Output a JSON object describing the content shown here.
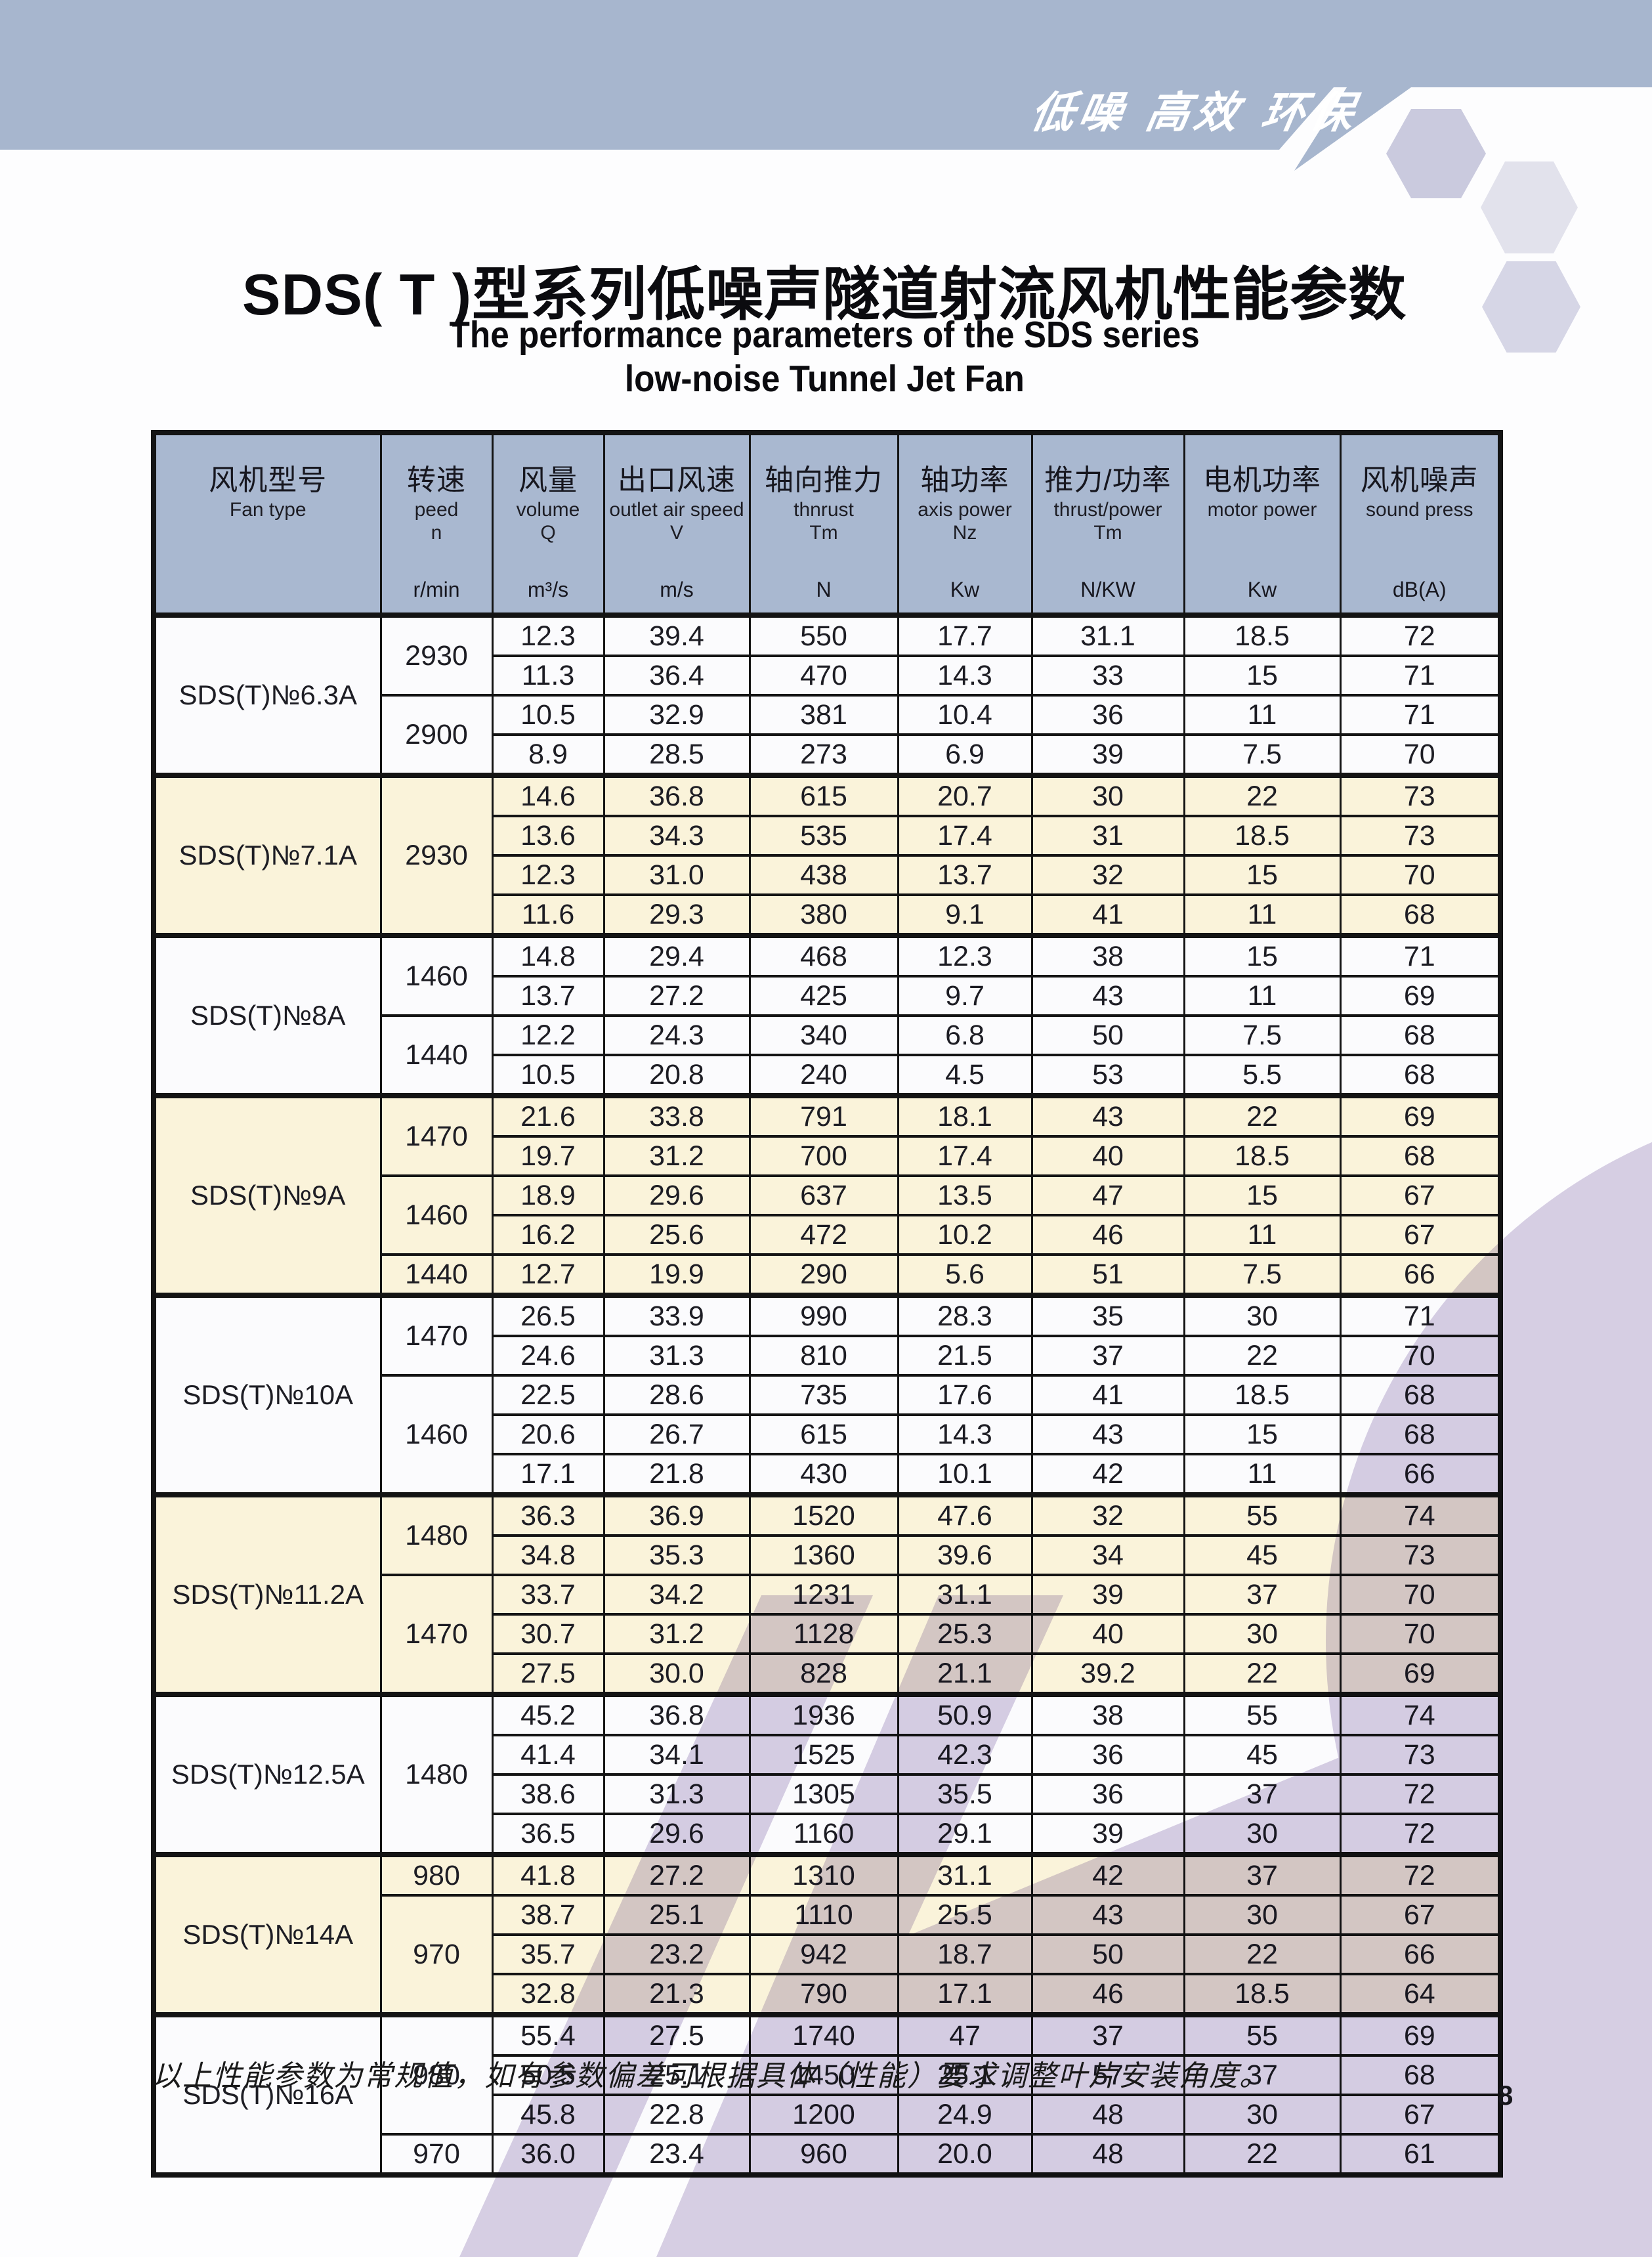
{
  "banner": {
    "slogan": "低噪 高效 环保"
  },
  "title": {
    "zh": "SDS( T )型系列低噪声隧道射流风机性能参数",
    "en_line1": "The performance parameters of the SDS series",
    "en_line2": "low-noise Tunnel Jet Fan"
  },
  "table": {
    "columns": [
      {
        "zh": "风机型号",
        "en": "Fan type",
        "sym": "",
        "unit": ""
      },
      {
        "zh": "转速",
        "en": "peed",
        "sym": "n",
        "unit": "r/min"
      },
      {
        "zh": "风量",
        "en": "volume",
        "sym": "Q",
        "unit": "m³/s"
      },
      {
        "zh": "出口风速",
        "en": "outlet air speed",
        "sym": "V",
        "unit": "m/s"
      },
      {
        "zh": "轴向推力",
        "en": "thnrust",
        "sym": "Tm",
        "unit": "N"
      },
      {
        "zh": "轴功率",
        "en": "axis power",
        "sym": "Nz",
        "unit": "Kw"
      },
      {
        "zh": "推力/功率",
        "en": "thrust/power",
        "sym": "Tm",
        "unit": "N/KW"
      },
      {
        "zh": "电机功率",
        "en": "motor power",
        "sym": "",
        "unit": "Kw"
      },
      {
        "zh": "风机噪声",
        "en": "sound press",
        "sym": "",
        "unit": "dB(A)"
      }
    ],
    "groups": [
      {
        "model": "SDS(T)№6.3A",
        "shade": false,
        "speeds": [
          {
            "rpm": "2930",
            "rows": [
              [
                "12.3",
                "39.4",
                "550",
                "17.7",
                "31.1",
                "18.5",
                "72"
              ],
              [
                "11.3",
                "36.4",
                "470",
                "14.3",
                "33",
                "15",
                "71"
              ]
            ]
          },
          {
            "rpm": "2900",
            "rows": [
              [
                "10.5",
                "32.9",
                "381",
                "10.4",
                "36",
                "11",
                "71"
              ],
              [
                "8.9",
                "28.5",
                "273",
                "6.9",
                "39",
                "7.5",
                "70"
              ]
            ]
          }
        ]
      },
      {
        "model": "SDS(T)№7.1A",
        "shade": true,
        "speeds": [
          {
            "rpm": "2930",
            "rows": [
              [
                "14.6",
                "36.8",
                "615",
                "20.7",
                "30",
                "22",
                "73"
              ],
              [
                "13.6",
                "34.3",
                "535",
                "17.4",
                "31",
                "18.5",
                "73"
              ],
              [
                "12.3",
                "31.0",
                "438",
                "13.7",
                "32",
                "15",
                "70"
              ],
              [
                "11.6",
                "29.3",
                "380",
                "9.1",
                "41",
                "11",
                "68"
              ]
            ]
          }
        ]
      },
      {
        "model": "SDS(T)№8A",
        "shade": false,
        "speeds": [
          {
            "rpm": "1460",
            "rows": [
              [
                "14.8",
                "29.4",
                "468",
                "12.3",
                "38",
                "15",
                "71"
              ],
              [
                "13.7",
                "27.2",
                "425",
                "9.7",
                "43",
                "11",
                "69"
              ]
            ]
          },
          {
            "rpm": "1440",
            "rows": [
              [
                "12.2",
                "24.3",
                "340",
                "6.8",
                "50",
                "7.5",
                "68"
              ],
              [
                "10.5",
                "20.8",
                "240",
                "4.5",
                "53",
                "5.5",
                "68"
              ]
            ]
          }
        ]
      },
      {
        "model": "SDS(T)№9A",
        "shade": true,
        "speeds": [
          {
            "rpm": "1470",
            "rows": [
              [
                "21.6",
                "33.8",
                "791",
                "18.1",
                "43",
                "22",
                "69"
              ],
              [
                "19.7",
                "31.2",
                "700",
                "17.4",
                "40",
                "18.5",
                "68"
              ]
            ]
          },
          {
            "rpm": "1460",
            "rows": [
              [
                "18.9",
                "29.6",
                "637",
                "13.5",
                "47",
                "15",
                "67"
              ],
              [
                "16.2",
                "25.6",
                "472",
                "10.2",
                "46",
                "11",
                "67"
              ]
            ]
          },
          {
            "rpm": "1440",
            "rows": [
              [
                "12.7",
                "19.9",
                "290",
                "5.6",
                "51",
                "7.5",
                "66"
              ]
            ]
          }
        ]
      },
      {
        "model": "SDS(T)№10A",
        "shade": false,
        "speeds": [
          {
            "rpm": "1470",
            "rows": [
              [
                "26.5",
                "33.9",
                "990",
                "28.3",
                "35",
                "30",
                "71"
              ],
              [
                "24.6",
                "31.3",
                "810",
                "21.5",
                "37",
                "22",
                "70"
              ]
            ]
          },
          {
            "rpm": "1460",
            "rows": [
              [
                "22.5",
                "28.6",
                "735",
                "17.6",
                "41",
                "18.5",
                "68"
              ],
              [
                "20.6",
                "26.7",
                "615",
                "14.3",
                "43",
                "15",
                "68"
              ],
              [
                "17.1",
                "21.8",
                "430",
                "10.1",
                "42",
                "11",
                "66"
              ]
            ]
          }
        ]
      },
      {
        "model": "SDS(T)№11.2A",
        "shade": true,
        "speeds": [
          {
            "rpm": "1480",
            "rows": [
              [
                "36.3",
                "36.9",
                "1520",
                "47.6",
                "32",
                "55",
                "74"
              ],
              [
                "34.8",
                "35.3",
                "1360",
                "39.6",
                "34",
                "45",
                "73"
              ]
            ]
          },
          {
            "rpm": "1470",
            "rows": [
              [
                "33.7",
                "34.2",
                "1231",
                "31.1",
                "39",
                "37",
                "70"
              ],
              [
                "30.7",
                "31.2",
                "1128",
                "25.3",
                "40",
                "30",
                "70"
              ],
              [
                "27.5",
                "30.0",
                "828",
                "21.1",
                "39.2",
                "22",
                "69"
              ]
            ]
          }
        ]
      },
      {
        "model": "SDS(T)№12.5A",
        "shade": false,
        "speeds": [
          {
            "rpm": "1480",
            "rows": [
              [
                "45.2",
                "36.8",
                "1936",
                "50.9",
                "38",
                "55",
                "74"
              ],
              [
                "41.4",
                "34.1",
                "1525",
                "42.3",
                "36",
                "45",
                "73"
              ],
              [
                "38.6",
                "31.3",
                "1305",
                "35.5",
                "36",
                "37",
                "72"
              ],
              [
                "36.5",
                "29.6",
                "1160",
                "29.1",
                "39",
                "30",
                "72"
              ]
            ]
          }
        ]
      },
      {
        "model": "SDS(T)№14A",
        "shade": true,
        "speeds": [
          {
            "rpm": "980",
            "rows": [
              [
                "41.8",
                "27.2",
                "1310",
                "31.1",
                "42",
                "37",
                "72"
              ]
            ]
          },
          {
            "rpm": "970",
            "rows": [
              [
                "38.7",
                "25.1",
                "1110",
                "25.5",
                "43",
                "30",
                "67"
              ],
              [
                "35.7",
                "23.2",
                "942",
                "18.7",
                "50",
                "22",
                "66"
              ],
              [
                "32.8",
                "21.3",
                "790",
                "17.1",
                "46",
                "18.5",
                "64"
              ]
            ]
          }
        ]
      },
      {
        "model": "SDS(T)№16A",
        "shade": false,
        "speeds": [
          {
            "rpm": "980",
            "rows": [
              [
                "55.4",
                "27.5",
                "1740",
                "47",
                "37",
                "55",
                "69"
              ],
              [
                "50.5",
                "25.1",
                "1450",
                "25.1",
                "57",
                "37",
                "68"
              ],
              [
                "45.8",
                "22.8",
                "1200",
                "24.9",
                "48",
                "30",
                "67"
              ]
            ]
          },
          {
            "rpm": "970",
            "rows": [
              [
                "36.0",
                "23.4",
                "960",
                "20.0",
                "48",
                "22",
                "61"
              ]
            ]
          }
        ]
      }
    ]
  },
  "footnote": "以上性能参数为常规值，如有参数偏差可根据具体（性能）要求调整叶片安装角度。",
  "page_number": "8",
  "colors": {
    "banner": "#a7b6ce",
    "table_header": "#a9b8d0",
    "row_shade": "#faf3da",
    "row_plain": "#fbfbfd",
    "watermark": "#d8d0e4",
    "border": "#141414",
    "hexagons": [
      "#cacade",
      "#e2e2ec",
      "#d6d6e6"
    ]
  }
}
